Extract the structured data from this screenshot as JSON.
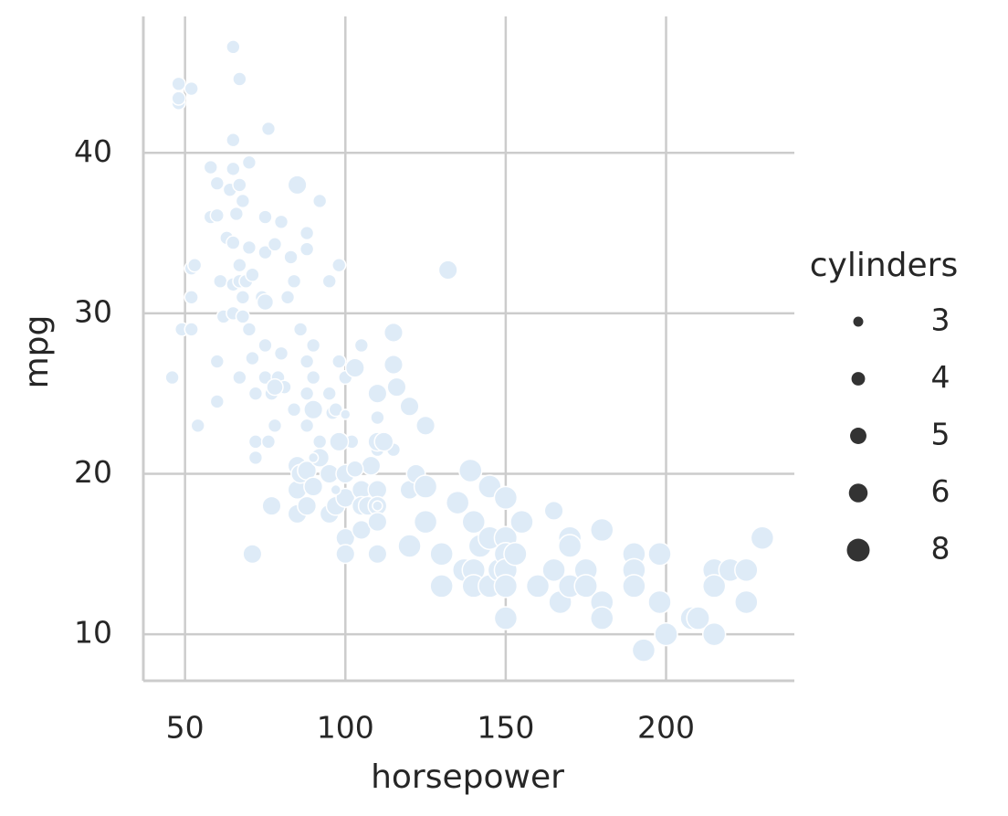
{
  "chart_data": {
    "type": "scatter",
    "xlabel": "horsepower",
    "ylabel": "mpg",
    "color": "#deebf7",
    "xlim": [
      37,
      240
    ],
    "ylim": [
      7.1,
      48.5
    ],
    "xticks": [
      50,
      100,
      150,
      200
    ],
    "yticks": [
      10,
      20,
      30,
      40
    ],
    "grid": true,
    "legend": {
      "title": "cylinders",
      "values": [
        3,
        4,
        5,
        6,
        8
      ],
      "position": "right"
    },
    "x": [
      46,
      48,
      48,
      48,
      49,
      52,
      52,
      52,
      53,
      52,
      54,
      58,
      58,
      60,
      60,
      60,
      60,
      61,
      62,
      63,
      64,
      65,
      65,
      65,
      65,
      65,
      65,
      66,
      67,
      67,
      67,
      67,
      67,
      68,
      68,
      68,
      69,
      70,
      70,
      70,
      71,
      71,
      72,
      72,
      72,
      74,
      75,
      75,
      75,
      75,
      76,
      76,
      77,
      78,
      78,
      79,
      80,
      80,
      81,
      82,
      83,
      84,
      84,
      86,
      88,
      88,
      88,
      88,
      88,
      90,
      90,
      90,
      92,
      92,
      95,
      95,
      96,
      97,
      98,
      98,
      100,
      102,
      105,
      110,
      110,
      115,
      71,
      77,
      75,
      78,
      85,
      85,
      85,
      85,
      86,
      88,
      88,
      90,
      90,
      92,
      95,
      95,
      97,
      98,
      100,
      100,
      100,
      100,
      103,
      105,
      105,
      105,
      107,
      108,
      110,
      110,
      110,
      110,
      110,
      110,
      112,
      115,
      115,
      116,
      120,
      120,
      120,
      122,
      125,
      125,
      125,
      130,
      130,
      132,
      135,
      137,
      139,
      140,
      140,
      140,
      142,
      145,
      145,
      145,
      148,
      150,
      150,
      150,
      150,
      150,
      150,
      153,
      155,
      160,
      165,
      165,
      167,
      170,
      170,
      170,
      175,
      175,
      180,
      180,
      180,
      190,
      190,
      190,
      193,
      198,
      198,
      200,
      208,
      210,
      215,
      215,
      215,
      220,
      225,
      225,
      230,
      97,
      90,
      100,
      110,
      103
    ],
    "values": [
      26,
      43.1,
      44.3,
      43.4,
      29,
      29,
      31,
      32.8,
      33,
      44,
      23,
      39.1,
      36,
      36.1,
      38.1,
      24.5,
      27,
      32,
      29.8,
      34.7,
      37.7,
      46.6,
      40.8,
      39,
      34.4,
      31.8,
      30,
      36.2,
      44.6,
      38,
      33,
      32,
      26,
      31,
      37,
      29.8,
      32,
      39.4,
      34.1,
      29,
      32.4,
      27.2,
      22,
      21,
      25,
      31,
      36,
      26,
      28,
      33.8,
      41.5,
      22,
      25,
      23,
      34.3,
      26,
      27.5,
      35.7,
      25.4,
      31,
      33.5,
      32,
      24,
      29,
      35,
      34,
      27,
      25,
      23,
      28,
      26,
      24,
      22,
      37,
      32,
      25,
      23.8,
      24,
      27,
      33,
      26,
      22,
      28,
      23.5,
      21.5,
      21.5,
      15,
      18,
      30.7,
      25.4,
      38,
      17.5,
      20.5,
      19,
      20,
      20.2,
      18,
      19.2,
      24,
      21,
      20,
      17.5,
      18,
      22,
      18.5,
      16,
      20,
      15,
      26.6,
      19,
      18,
      16.5,
      18,
      20.5,
      25,
      22,
      19,
      18,
      17,
      15,
      22,
      28.8,
      26.8,
      25.4,
      24.2,
      19,
      15.5,
      20,
      23,
      17,
      19.2,
      15,
      13,
      32.7,
      18.2,
      14,
      20.2,
      17,
      14,
      13,
      15.5,
      19.2,
      16,
      13,
      14,
      18.5,
      16,
      15,
      14,
      13,
      11,
      15,
      17,
      13,
      14,
      17.7,
      12,
      16,
      15.5,
      13,
      14,
      13,
      16.5,
      12,
      11,
      15,
      14,
      13,
      9,
      15,
      12,
      10,
      11,
      11,
      14,
      13,
      10,
      14,
      14,
      12,
      16,
      19,
      21,
      23.7,
      18,
      20.3
    ],
    "sizes": [
      4,
      4,
      4,
      4,
      4,
      4,
      4,
      4,
      4,
      4,
      4,
      4,
      4,
      4,
      4,
      4,
      4,
      4,
      4,
      4,
      4,
      4,
      4,
      4,
      4,
      4,
      4,
      4,
      4,
      4,
      4,
      4,
      4,
      4,
      4,
      4,
      4,
      4,
      4,
      4,
      4,
      4,
      4,
      4,
      4,
      4,
      4,
      4,
      4,
      4,
      4,
      4,
      4,
      4,
      4,
      4,
      4,
      4,
      4,
      4,
      4,
      4,
      4,
      4,
      4,
      4,
      4,
      4,
      4,
      4,
      4,
      4,
      4,
      4,
      4,
      4,
      4,
      4,
      4,
      4,
      4,
      4,
      4,
      4,
      4,
      4,
      6,
      6,
      5,
      5,
      6,
      6,
      6,
      6,
      6,
      6,
      6,
      6,
      6,
      6,
      6,
      6,
      6,
      6,
      6,
      6,
      6,
      6,
      6,
      6,
      6,
      6,
      6,
      6,
      6,
      6,
      6,
      6,
      6,
      6,
      6,
      6,
      6,
      6,
      6,
      6,
      8,
      6,
      6,
      8,
      8,
      8,
      8,
      6,
      8,
      8,
      8,
      8,
      8,
      8,
      8,
      8,
      8,
      8,
      8,
      8,
      8,
      8,
      8,
      8,
      8,
      8,
      8,
      8,
      8,
      6,
      8,
      8,
      8,
      8,
      8,
      8,
      8,
      8,
      8,
      8,
      8,
      8,
      8,
      8,
      8,
      8,
      8,
      8,
      8,
      8,
      8,
      8,
      8,
      8,
      8,
      3,
      3,
      3,
      3,
      5
    ]
  }
}
